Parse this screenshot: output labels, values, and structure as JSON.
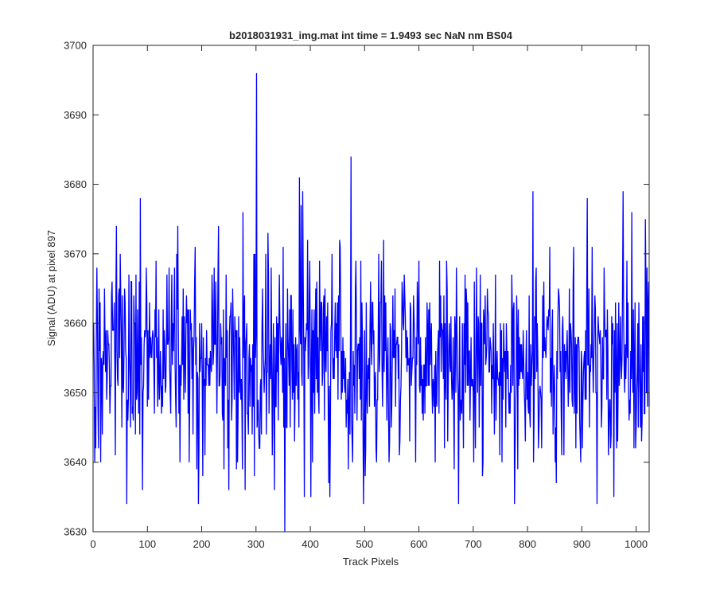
{
  "chart_data": {
    "type": "line",
    "title": "b2018031931_img.mat int time = 1.9493 sec  NaN nm BS04",
    "xlabel": "Track Pixels",
    "ylabel": "Signal (ADU) at pixel 897",
    "xlim": [
      0,
      1024
    ],
    "ylim": [
      3630,
      3700
    ],
    "xticks": [
      0,
      100,
      200,
      300,
      400,
      500,
      600,
      700,
      800,
      900,
      1000
    ],
    "yticks": [
      3630,
      3640,
      3650,
      3660,
      3670,
      3680,
      3690,
      3700
    ],
    "grid": false,
    "legend": "none",
    "series": [
      {
        "color": "#0000ff",
        "noise": {
          "n": 1024,
          "mean": 3655,
          "sd": 7,
          "min": 3634,
          "max": 3679
        },
        "spikes": [
          {
            "x": 13,
            "y": 3640
          },
          {
            "x": 42,
            "y": 3674
          },
          {
            "x": 61,
            "y": 3634
          },
          {
            "x": 86,
            "y": 3678
          },
          {
            "x": 149,
            "y": 3668
          },
          {
            "x": 155,
            "y": 3674
          },
          {
            "x": 176,
            "y": 3640
          },
          {
            "x": 201,
            "y": 3638
          },
          {
            "x": 230,
            "y": 3674
          },
          {
            "x": 265,
            "y": 3640
          },
          {
            "x": 275,
            "y": 3676
          },
          {
            "x": 279,
            "y": 3636
          },
          {
            "x": 300,
            "y": 3696
          },
          {
            "x": 333,
            "y": 3636
          },
          {
            "x": 352,
            "y": 3630
          },
          {
            "x": 379,
            "y": 3681
          },
          {
            "x": 385,
            "y": 3679
          },
          {
            "x": 400,
            "y": 3635
          },
          {
            "x": 435,
            "y": 3635
          },
          {
            "x": 474,
            "y": 3684
          },
          {
            "x": 500,
            "y": 3638
          },
          {
            "x": 534,
            "y": 3672
          },
          {
            "x": 555,
            "y": 3665
          },
          {
            "x": 650,
            "y": 3669
          },
          {
            "x": 672,
            "y": 3634
          },
          {
            "x": 700,
            "y": 3640
          },
          {
            "x": 775,
            "y": 3634
          },
          {
            "x": 840,
            "y": 3671
          },
          {
            "x": 888,
            "y": 3642
          },
          {
            "x": 927,
            "y": 3634
          },
          {
            "x": 940,
            "y": 3668
          },
          {
            "x": 958,
            "y": 3635
          },
          {
            "x": 975,
            "y": 3679
          },
          {
            "x": 991,
            "y": 3676
          },
          {
            "x": 1003,
            "y": 3645
          },
          {
            "x": 1016,
            "y": 3675
          }
        ]
      }
    ]
  }
}
